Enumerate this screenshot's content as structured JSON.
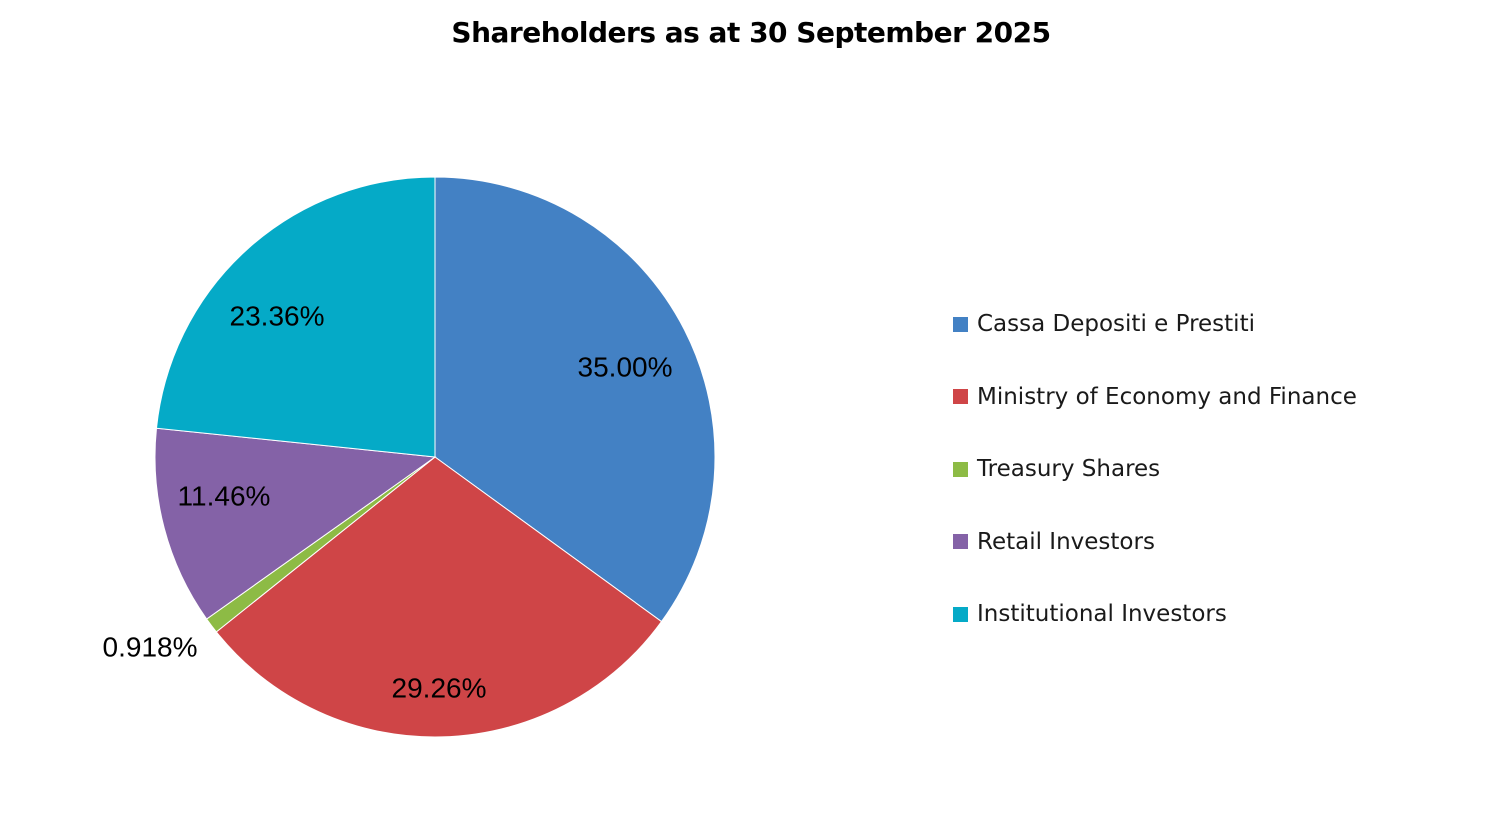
{
  "chart_data": {
    "type": "pie",
    "title": "Shareholders as at 30 September 2025",
    "legend_position": "right",
    "slices": [
      {
        "name": "Cassa Depositi e Prestiti",
        "value": 35.0,
        "label": "35.00%",
        "color": "#4381C4"
      },
      {
        "name": "Ministry of Economy and Finance",
        "value": 29.26,
        "label": "29.26%",
        "color": "#CF4547"
      },
      {
        "name": "Treasury Shares",
        "value": 0.918,
        "label": "0.918%",
        "color": "#8DBB45"
      },
      {
        "name": "Retail Investors",
        "value": 11.46,
        "label": "11.46%",
        "color": "#8462A7"
      },
      {
        "name": "Institutional Investors",
        "value": 23.36,
        "label": "23.36%",
        "color": "#05AAC7"
      }
    ]
  }
}
